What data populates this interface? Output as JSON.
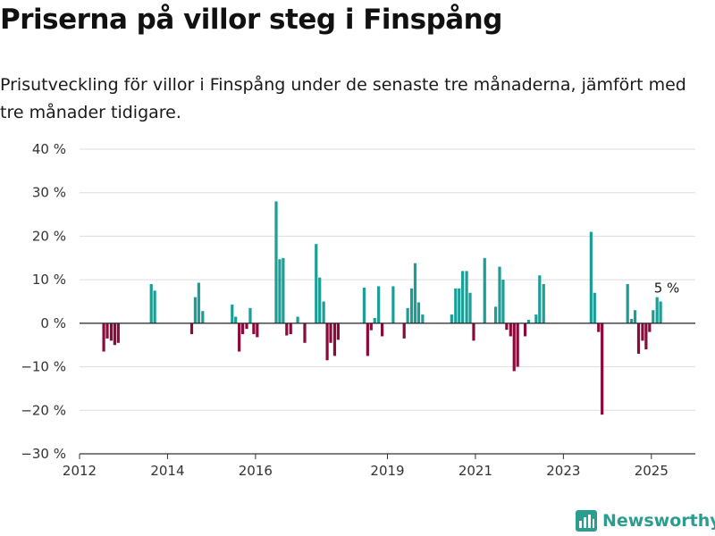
{
  "title": "Priserna på villor steg i Finspång",
  "subtitle": "Prisutveckling för villor i Finspång under de senaste tre månaderna, jämfört med tre månader tidigare.",
  "brand": {
    "name": "Newsworthy"
  },
  "colors": {
    "positive": "#1a9e96",
    "negative": "#8b0a3c",
    "grid": "#dddddd",
    "axis": "#333333",
    "zero_line": "#222222"
  },
  "chart_data": {
    "type": "bar",
    "title": "",
    "xlabel": "",
    "ylabel": "",
    "ylim": [
      -30,
      40
    ],
    "yticks": [
      -30,
      -20,
      -10,
      0,
      10,
      20,
      30,
      40
    ],
    "ytick_labels": [
      "−30 %",
      "−20 %",
      "−10 %",
      "0 %",
      "10 %",
      "20 %",
      "30 %",
      "40 %"
    ],
    "xlim": [
      2012,
      2026
    ],
    "xticks": [
      2012,
      2014,
      2016,
      2019,
      2021,
      2023,
      2025
    ],
    "xtick_labels": [
      "2012",
      "2014",
      "2016",
      "2019",
      "2021",
      "2023",
      "2025"
    ],
    "grid": true,
    "bar_width_years": 0.065,
    "annotation": {
      "x": 2025.35,
      "y": 5,
      "text": "5 %"
    },
    "points": [
      {
        "x": 2012.55,
        "y": -6.5
      },
      {
        "x": 2012.63,
        "y": -3.5
      },
      {
        "x": 2012.72,
        "y": -4.0
      },
      {
        "x": 2012.8,
        "y": -5.0
      },
      {
        "x": 2012.88,
        "y": -4.5
      },
      {
        "x": 2013.63,
        "y": 9.0
      },
      {
        "x": 2013.71,
        "y": 7.5
      },
      {
        "x": 2014.55,
        "y": -2.5
      },
      {
        "x": 2014.63,
        "y": 6.0
      },
      {
        "x": 2014.71,
        "y": 9.3
      },
      {
        "x": 2014.8,
        "y": 2.8
      },
      {
        "x": 2015.47,
        "y": 4.3
      },
      {
        "x": 2015.55,
        "y": 1.5
      },
      {
        "x": 2015.63,
        "y": -6.5
      },
      {
        "x": 2015.71,
        "y": -2.5
      },
      {
        "x": 2015.8,
        "y": -1.3
      },
      {
        "x": 2015.88,
        "y": 3.5
      },
      {
        "x": 2015.96,
        "y": -2.5
      },
      {
        "x": 2016.04,
        "y": -3.2
      },
      {
        "x": 2016.47,
        "y": 28.0
      },
      {
        "x": 2016.55,
        "y": 14.7
      },
      {
        "x": 2016.63,
        "y": 15.0
      },
      {
        "x": 2016.71,
        "y": -2.8
      },
      {
        "x": 2016.8,
        "y": -2.5
      },
      {
        "x": 2016.96,
        "y": 1.5
      },
      {
        "x": 2017.12,
        "y": -4.5
      },
      {
        "x": 2017.38,
        "y": 18.2
      },
      {
        "x": 2017.46,
        "y": 10.5
      },
      {
        "x": 2017.55,
        "y": 5.0
      },
      {
        "x": 2017.63,
        "y": -8.5
      },
      {
        "x": 2017.71,
        "y": -4.5
      },
      {
        "x": 2017.8,
        "y": -7.5
      },
      {
        "x": 2017.88,
        "y": -3.8
      },
      {
        "x": 2018.47,
        "y": 8.2
      },
      {
        "x": 2018.55,
        "y": -7.5
      },
      {
        "x": 2018.63,
        "y": -1.6
      },
      {
        "x": 2018.71,
        "y": 1.2
      },
      {
        "x": 2018.8,
        "y": 8.5
      },
      {
        "x": 2018.88,
        "y": -3.0
      },
      {
        "x": 2019.13,
        "y": 8.5
      },
      {
        "x": 2019.38,
        "y": -3.5
      },
      {
        "x": 2019.46,
        "y": 3.5
      },
      {
        "x": 2019.55,
        "y": 8.0
      },
      {
        "x": 2019.63,
        "y": 13.8
      },
      {
        "x": 2019.71,
        "y": 4.8
      },
      {
        "x": 2019.8,
        "y": 2.0
      },
      {
        "x": 2020.46,
        "y": 2.0
      },
      {
        "x": 2020.55,
        "y": 8.0
      },
      {
        "x": 2020.63,
        "y": 8.0
      },
      {
        "x": 2020.71,
        "y": 12.0
      },
      {
        "x": 2020.8,
        "y": 12.0
      },
      {
        "x": 2020.88,
        "y": 7.0
      },
      {
        "x": 2020.96,
        "y": -4.0
      },
      {
        "x": 2021.21,
        "y": 15.0
      },
      {
        "x": 2021.46,
        "y": 3.8
      },
      {
        "x": 2021.55,
        "y": 13.0
      },
      {
        "x": 2021.63,
        "y": 10.0
      },
      {
        "x": 2021.71,
        "y": -1.5
      },
      {
        "x": 2021.8,
        "y": -3.0
      },
      {
        "x": 2021.88,
        "y": -11.0
      },
      {
        "x": 2021.96,
        "y": -10.0
      },
      {
        "x": 2022.13,
        "y": -3.0
      },
      {
        "x": 2022.21,
        "y": 0.8
      },
      {
        "x": 2022.38,
        "y": 2.0
      },
      {
        "x": 2022.46,
        "y": 11.0
      },
      {
        "x": 2022.55,
        "y": 9.0
      },
      {
        "x": 2023.63,
        "y": 21.0
      },
      {
        "x": 2023.71,
        "y": 7.0
      },
      {
        "x": 2023.8,
        "y": -2.0
      },
      {
        "x": 2023.88,
        "y": -21.0
      },
      {
        "x": 2024.46,
        "y": 9.0
      },
      {
        "x": 2024.55,
        "y": 1.0
      },
      {
        "x": 2024.63,
        "y": 3.0
      },
      {
        "x": 2024.71,
        "y": -7.0
      },
      {
        "x": 2024.8,
        "y": -4.0
      },
      {
        "x": 2024.88,
        "y": -6.0
      },
      {
        "x": 2024.96,
        "y": -2.0
      },
      {
        "x": 2025.04,
        "y": 3.0
      },
      {
        "x": 2025.13,
        "y": 6.0
      },
      {
        "x": 2025.21,
        "y": 5.0
      }
    ]
  }
}
